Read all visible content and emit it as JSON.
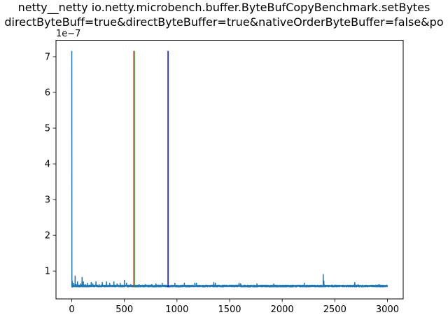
{
  "chart_data": {
    "type": "line",
    "title_lines": [
      "netty__netty io.netty.microbench.buffer.ByteBufCopyBenchmark.setBytes",
      "directByteBuff=true&directByteBuffer=true&nativeOrderByteBuffer=false&po"
    ],
    "xlabel": "",
    "ylabel": "",
    "xlim": [
      -150,
      3150
    ],
    "ylim": [
      0.22,
      7.46
    ],
    "y_offset_label": "1e−7",
    "x_ticks": [
      0,
      500,
      1000,
      1500,
      2000,
      2500,
      3000
    ],
    "x_tick_labels": [
      "0",
      "500",
      "1000",
      "1500",
      "2000",
      "2500",
      "3000"
    ],
    "y_ticks": [
      1,
      2,
      3,
      4,
      5,
      6,
      7
    ],
    "y_tick_labels": [
      "1",
      "2",
      "3",
      "4",
      "5",
      "6",
      "7"
    ],
    "grid": false,
    "series": [
      {
        "color": "#1f77b4",
        "baseline": 0.58,
        "x_range": [
          0,
          3000
        ],
        "spikes": [
          [
            0,
            7.16
          ],
          [
            2,
            0.55
          ],
          [
            4,
            0.72
          ],
          [
            8,
            0.6
          ],
          [
            15,
            0.66
          ],
          [
            25,
            0.6
          ],
          [
            32,
            0.86
          ],
          [
            40,
            0.62
          ],
          [
            55,
            0.7
          ],
          [
            70,
            0.6
          ],
          [
            85,
            0.64
          ],
          [
            98,
            0.82
          ],
          [
            110,
            0.7
          ],
          [
            130,
            0.62
          ],
          [
            150,
            0.66
          ],
          [
            185,
            0.68
          ],
          [
            200,
            0.64
          ],
          [
            230,
            0.7
          ],
          [
            260,
            0.62
          ],
          [
            290,
            0.68
          ],
          [
            330,
            0.7
          ],
          [
            360,
            0.66
          ],
          [
            400,
            0.7
          ],
          [
            430,
            0.64
          ],
          [
            460,
            0.66
          ],
          [
            500,
            0.74
          ],
          [
            520,
            0.66
          ],
          [
            560,
            0.62
          ],
          [
            590,
            0.6
          ],
          [
            640,
            0.62
          ],
          [
            700,
            0.62
          ],
          [
            760,
            0.62
          ],
          [
            800,
            0.64
          ],
          [
            860,
            0.66
          ],
          [
            900,
            0.6
          ],
          [
            980,
            0.66
          ],
          [
            1000,
            0.6
          ],
          [
            1070,
            0.66
          ],
          [
            1170,
            0.66
          ],
          [
            1185,
            0.66
          ],
          [
            1350,
            0.68
          ],
          [
            1365,
            0.66
          ],
          [
            1590,
            0.66
          ],
          [
            1605,
            0.64
          ],
          [
            1760,
            0.64
          ],
          [
            1920,
            0.64
          ],
          [
            2210,
            0.66
          ],
          [
            2390,
            0.9
          ],
          [
            2396,
            0.72
          ],
          [
            2690,
            0.68
          ],
          [
            2720,
            0.62
          ],
          [
            2920,
            0.62
          ],
          [
            2960,
            0.6
          ]
        ]
      }
    ],
    "vertical_lines": [
      {
        "x": 590,
        "color": "#d62728",
        "y_range": [
          0.55,
          7.16
        ]
      },
      {
        "x": 595,
        "color": "#2ca02c",
        "y_range": [
          0.55,
          7.16
        ]
      },
      {
        "x": 915,
        "color": "#0000ff",
        "y_range": [
          0.55,
          7.16
        ]
      }
    ]
  }
}
